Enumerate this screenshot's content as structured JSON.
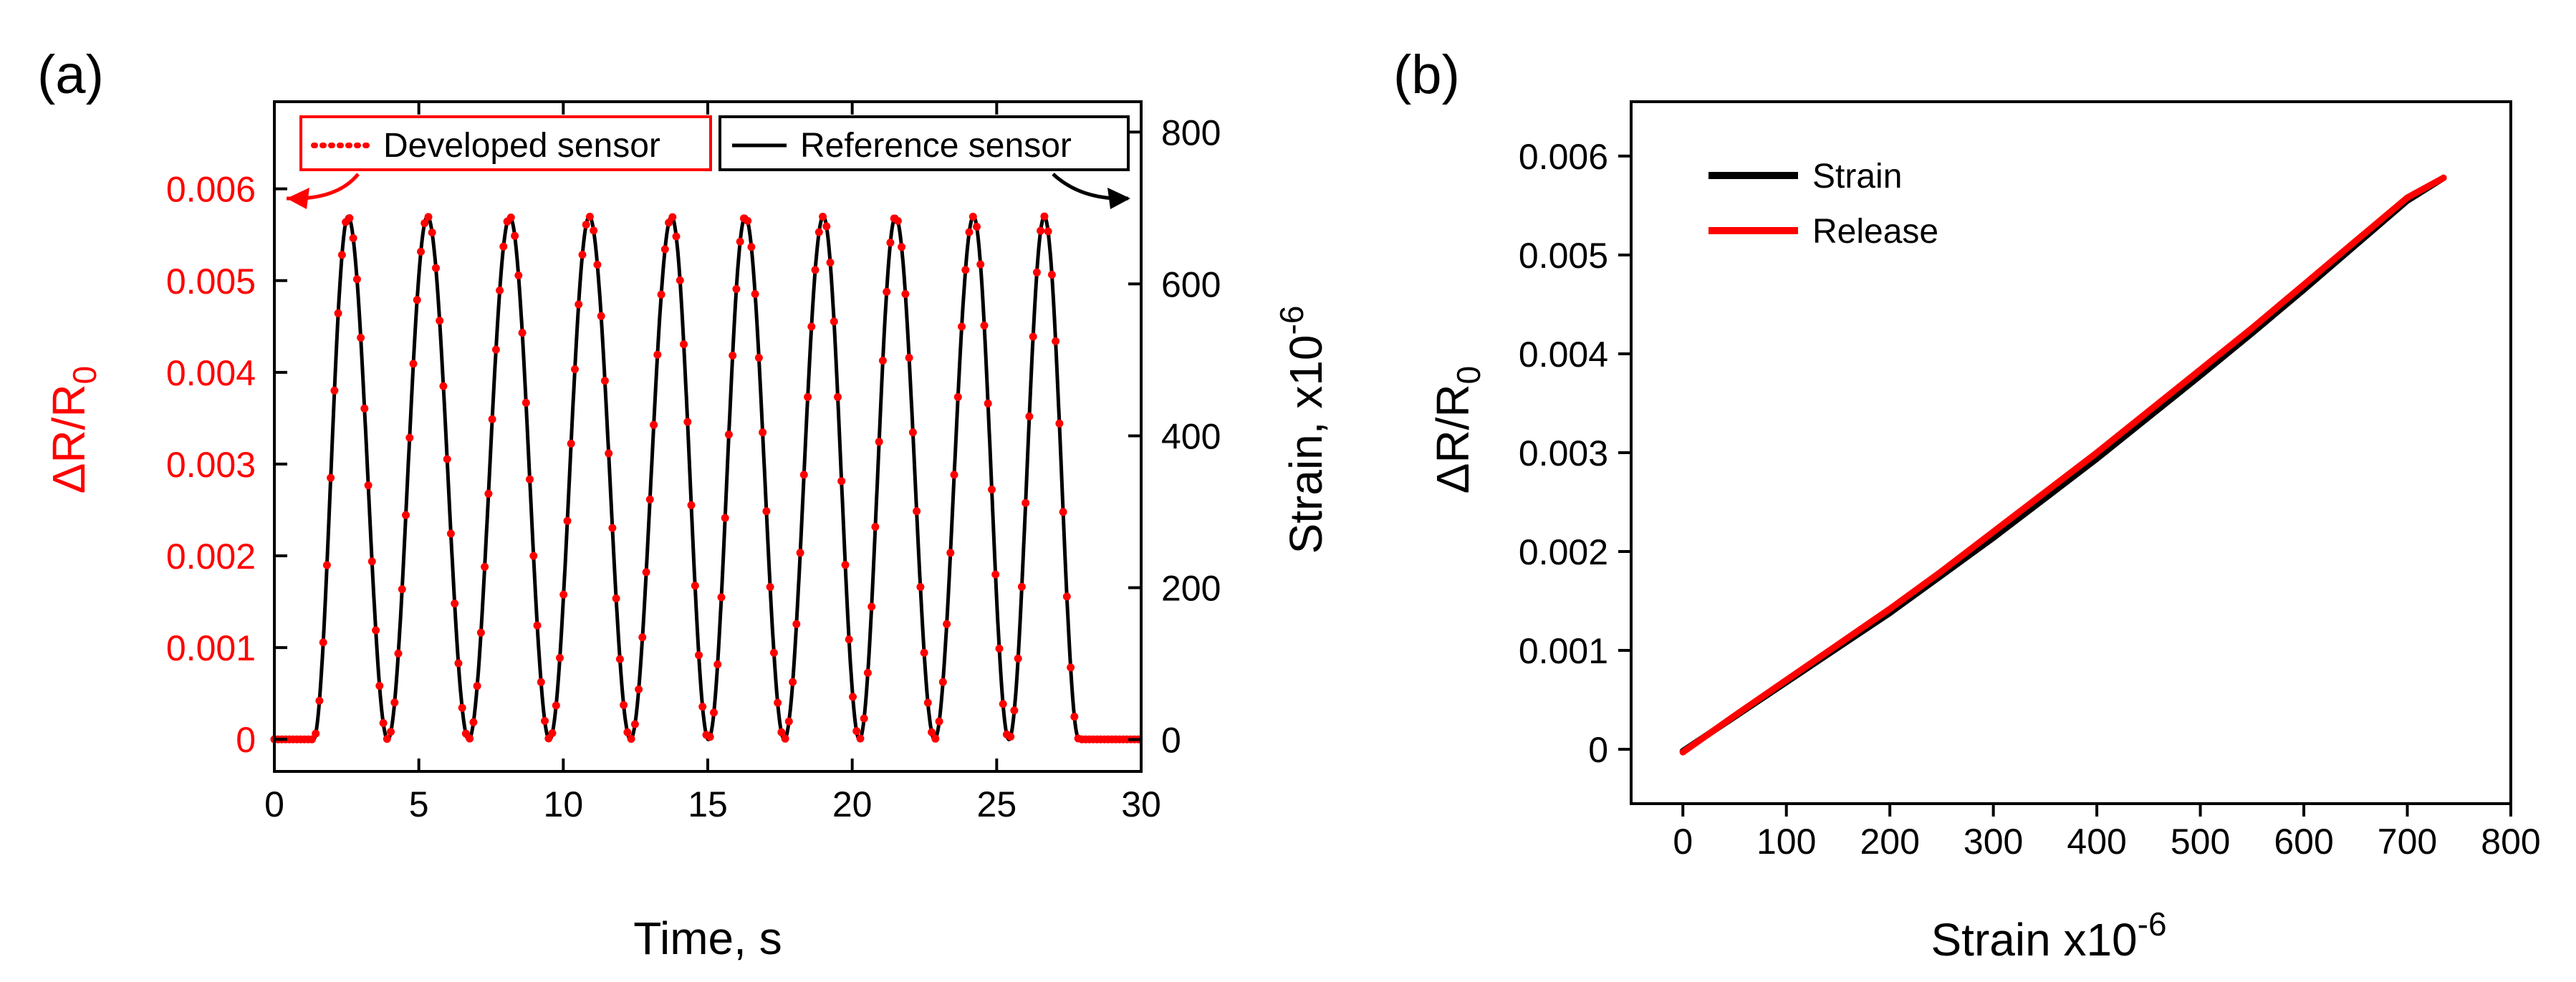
{
  "chart_data": [
    {
      "panel_label": "(a)",
      "type": "line",
      "xlabel": "Time, s",
      "ylabel_left": {
        "base": "ΔR/R",
        "sub": "0"
      },
      "ylabel_right": {
        "base": "Strain, x10",
        "sup": "-6"
      },
      "x_ticks": [
        "0",
        "5",
        "10",
        "15",
        "20",
        "25",
        "30"
      ],
      "y_left_ticks": [
        "0",
        "0.001",
        "0.002",
        "0.003",
        "0.004",
        "0.005",
        "0.006"
      ],
      "y_right_ticks": [
        "0",
        "200",
        "400",
        "600",
        "800"
      ],
      "xlim": [
        0,
        30
      ],
      "ylim_left": [
        -0.00035,
        0.00695
      ],
      "ylim_right": [
        -42,
        840
      ],
      "cycle_peaks_s": [
        2.55,
        5.3,
        8.15,
        10.9,
        13.75,
        16.3,
        19.0,
        21.5,
        24.2,
        26.65
      ],
      "peak_value": 0.0057,
      "trough_value": 0.0,
      "sample_step_s": 0.13,
      "series": [
        {
          "name": "Developed sensor",
          "axis": "left",
          "color": "#ff0000",
          "style": "dotted"
        },
        {
          "name": "Reference sensor",
          "axis": "right",
          "color": "#000000",
          "style": "solid"
        }
      ],
      "legend": [
        "Developed sensor",
        "Reference sensor"
      ],
      "colors": {
        "left_axis": "#ff0000",
        "right_axis": "#000000"
      }
    },
    {
      "panel_label": "(b)",
      "type": "line",
      "xlabel": {
        "base": "Strain x10",
        "sup": "-6"
      },
      "ylabel": {
        "base": "ΔR/R",
        "sub": "0"
      },
      "x_ticks": [
        "0",
        "100",
        "200",
        "300",
        "400",
        "500",
        "600",
        "700",
        "800"
      ],
      "y_ticks": [
        "0",
        "0.001",
        "0.002",
        "0.003",
        "0.004",
        "0.005",
        "0.006"
      ],
      "xlim": [
        -50,
        800
      ],
      "ylim": [
        -0.00055,
        0.00655
      ],
      "series": [
        {
          "name": "Strain",
          "color": "#000000",
          "x": [
            0,
            50,
            100,
            150,
            200,
            250,
            300,
            350,
            400,
            450,
            500,
            550,
            600,
            650,
            700,
            735
          ],
          "y": [
            -2e-05,
            0.00033,
            0.00068,
            0.00103,
            0.00138,
            0.00176,
            0.00214,
            0.00254,
            0.00294,
            0.00336,
            0.00378,
            0.00421,
            0.00465,
            0.0051,
            0.00555,
            0.00578
          ]
        },
        {
          "name": "Release",
          "color": "#ff0000",
          "x": [
            0,
            50,
            100,
            150,
            200,
            250,
            300,
            350,
            400,
            450,
            500,
            550,
            600,
            650,
            700,
            735
          ],
          "y": [
            -3e-05,
            0.00034,
            0.0007,
            0.00106,
            0.00142,
            0.0018,
            0.0022,
            0.0026,
            0.003,
            0.00342,
            0.00384,
            0.00426,
            0.0047,
            0.00514,
            0.00558,
            0.00578
          ]
        }
      ],
      "legend": [
        "Strain",
        "Release"
      ]
    }
  ]
}
